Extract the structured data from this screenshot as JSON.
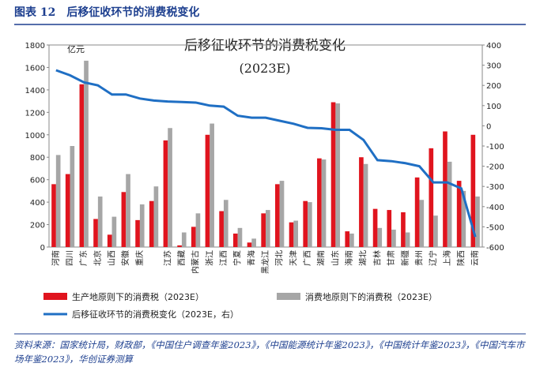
{
  "header": "图表 12　后移征收环节的消费税变化",
  "source": "资料来源：国家统计局，财政部，《中国住户调查年鉴2023》，《中国能源统计年鉴2023》，《中国统计年鉴2023》，《中国汽车市场年鉴2023》，华创证券测算",
  "chart_data": {
    "type": "bar-line",
    "title": "后移征收环节的消费税变化",
    "subtitle": "(2023E)",
    "y_unit": "亿元",
    "categories": [
      "河南",
      "四川",
      "广东",
      "北京",
      "山西",
      "安徽",
      "重庆",
      null,
      "江苏",
      "西藏",
      "内蒙古",
      "浙江",
      "江西",
      "宁夏",
      "青海",
      "黑龙江",
      "河北",
      "天津",
      "广西",
      "湖南",
      "山东",
      "海南",
      "湖北",
      "吉林",
      "甘肃",
      "新疆",
      "贵州",
      "辽宁",
      "上海",
      "陕西",
      "云南"
    ],
    "series": [
      {
        "name": "生产地原则下的消费税（2023E）",
        "color": "#e0141e",
        "type": "bar",
        "values": [
          560,
          650,
          1450,
          250,
          110,
          490,
          240,
          410,
          950,
          15,
          180,
          1000,
          320,
          120,
          40,
          300,
          560,
          220,
          410,
          790,
          1290,
          140,
          800,
          340,
          330,
          310,
          620,
          880,
          1030,
          590,
          1000
        ]
      },
      {
        "name": "消费地原则下的消费税（2023E）",
        "color": "#a6a6a6",
        "type": "bar",
        "values": [
          820,
          900,
          1660,
          450,
          270,
          650,
          380,
          540,
          1060,
          130,
          300,
          1100,
          420,
          170,
          75,
          330,
          590,
          235,
          400,
          780,
          1280,
          120,
          740,
          170,
          155,
          130,
          420,
          280,
          760,
          500,
          450
        ]
      },
      {
        "name": "后移征收环节的消费税变化（2023E，右）",
        "color": "#1f6fc4",
        "type": "line",
        "axis": "y2",
        "values": [
          275,
          250,
          215,
          200,
          155,
          155,
          135,
          125,
          120,
          118,
          115,
          100,
          95,
          50,
          40,
          40,
          25,
          10,
          -10,
          -12,
          -20,
          -20,
          -70,
          -170,
          -175,
          -185,
          -200,
          -280,
          -280,
          -310,
          -550
        ]
      }
    ],
    "ylim": [
      0,
      1800
    ],
    "yticks": [
      0,
      200,
      400,
      600,
      800,
      1000,
      1200,
      1400,
      1600,
      1800
    ],
    "y2lim": [
      -600,
      400
    ],
    "y2ticks": [
      -600,
      -500,
      -400,
      -300,
      -200,
      -100,
      0,
      100,
      200,
      300,
      400
    ]
  }
}
